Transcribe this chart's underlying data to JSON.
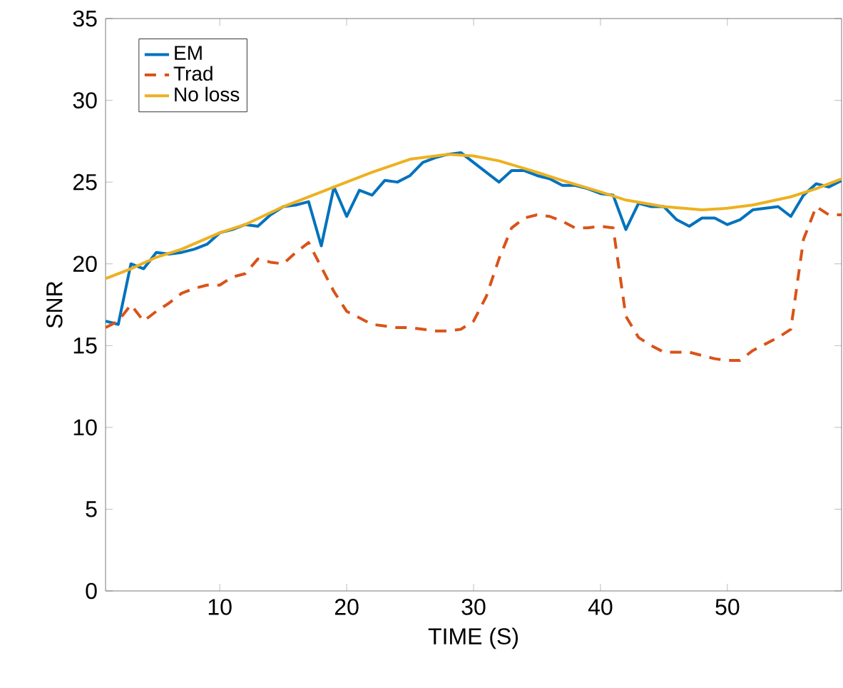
{
  "chart_data": {
    "type": "line",
    "xlabel": "TIME (S)",
    "ylabel": "SNR",
    "xlim": [
      1,
      59
    ],
    "ylim": [
      0,
      35
    ],
    "xticks": [
      10,
      20,
      30,
      40,
      50
    ],
    "yticks": [
      0,
      5,
      10,
      15,
      20,
      25,
      30,
      35
    ],
    "grid": false,
    "legend": "top left",
    "marker": "none",
    "series": [
      {
        "name": "EM",
        "color": "#0072bd",
        "line_style": "solid",
        "x": [
          1,
          2,
          3,
          4,
          5,
          6,
          7,
          8,
          9,
          10,
          11,
          12,
          13,
          14,
          15,
          16,
          17,
          18,
          19,
          20,
          21,
          22,
          23,
          24,
          25,
          26,
          27,
          28,
          29,
          30,
          31,
          32,
          33,
          34,
          35,
          36,
          37,
          38,
          39,
          40,
          41,
          42,
          43,
          44,
          45,
          46,
          47,
          48,
          49,
          50,
          51,
          52,
          53,
          54,
          55,
          56,
          57,
          58,
          59
        ],
        "values": [
          16.5,
          16.3,
          20,
          19.7,
          20.7,
          20.6,
          20.7,
          20.9,
          21.2,
          21.9,
          22.1,
          22.4,
          22.3,
          23,
          23.5,
          23.6,
          23.8,
          21.1,
          24.7,
          22.9,
          24.5,
          24.2,
          25.1,
          25,
          25.4,
          26.2,
          26.5,
          26.7,
          26.8,
          26.2,
          25.6,
          25,
          25.7,
          25.7,
          25.4,
          25.2,
          24.8,
          24.8,
          24.6,
          24.3,
          24.2,
          22.1,
          23.7,
          23.5,
          23.5,
          22.7,
          22.3,
          22.8,
          22.8,
          22.4,
          22.7,
          23.3,
          23.4,
          23.5,
          22.9,
          24.2,
          24.9,
          24.7,
          25.1
        ]
      },
      {
        "name": "Trad",
        "color": "#d95319",
        "line_style": "dashed",
        "x": [
          1,
          2,
          3,
          4,
          5,
          6,
          7,
          8,
          9,
          10,
          11,
          12,
          13,
          14,
          15,
          16,
          17,
          18,
          19,
          20,
          21,
          22,
          23,
          24,
          25,
          26,
          27,
          28,
          29,
          30,
          31,
          32,
          33,
          34,
          35,
          36,
          37,
          38,
          39,
          40,
          41,
          42,
          43,
          44,
          45,
          46,
          47,
          48,
          49,
          50,
          51,
          52,
          53,
          54,
          55,
          56,
          57,
          58,
          59
        ],
        "values": [
          16.1,
          16.5,
          17.5,
          16.5,
          17.1,
          17.6,
          18.2,
          18.5,
          18.7,
          18.7,
          19.2,
          19.4,
          20.3,
          20.1,
          20,
          20.7,
          21.3,
          19.8,
          18.3,
          17.1,
          16.7,
          16.3,
          16.2,
          16.1,
          16.1,
          16,
          15.9,
          15.9,
          16,
          16.5,
          18,
          20.3,
          22.2,
          22.8,
          23,
          22.9,
          22.6,
          22.2,
          22.2,
          22.3,
          22.2,
          16.8,
          15.5,
          15,
          14.6,
          14.6,
          14.6,
          14.4,
          14.2,
          14.1,
          14.1,
          14.7,
          15.1,
          15.5,
          16,
          21.5,
          23.5,
          23,
          23
        ]
      },
      {
        "name": "No loss",
        "color": "#edb120",
        "line_style": "solid",
        "x": [
          1,
          3,
          5,
          7,
          10,
          12,
          15,
          17,
          20,
          22,
          25,
          27,
          28,
          30,
          32,
          35,
          37,
          40,
          42,
          45,
          48,
          50,
          52,
          55,
          57,
          59
        ],
        "values": [
          19.1,
          19.7,
          20.4,
          20.9,
          21.9,
          22.4,
          23.5,
          24.1,
          25,
          25.6,
          26.4,
          26.6,
          26.7,
          26.6,
          26.3,
          25.6,
          25.1,
          24.4,
          23.9,
          23.5,
          23.3,
          23.4,
          23.6,
          24.1,
          24.6,
          25.2
        ]
      }
    ]
  }
}
